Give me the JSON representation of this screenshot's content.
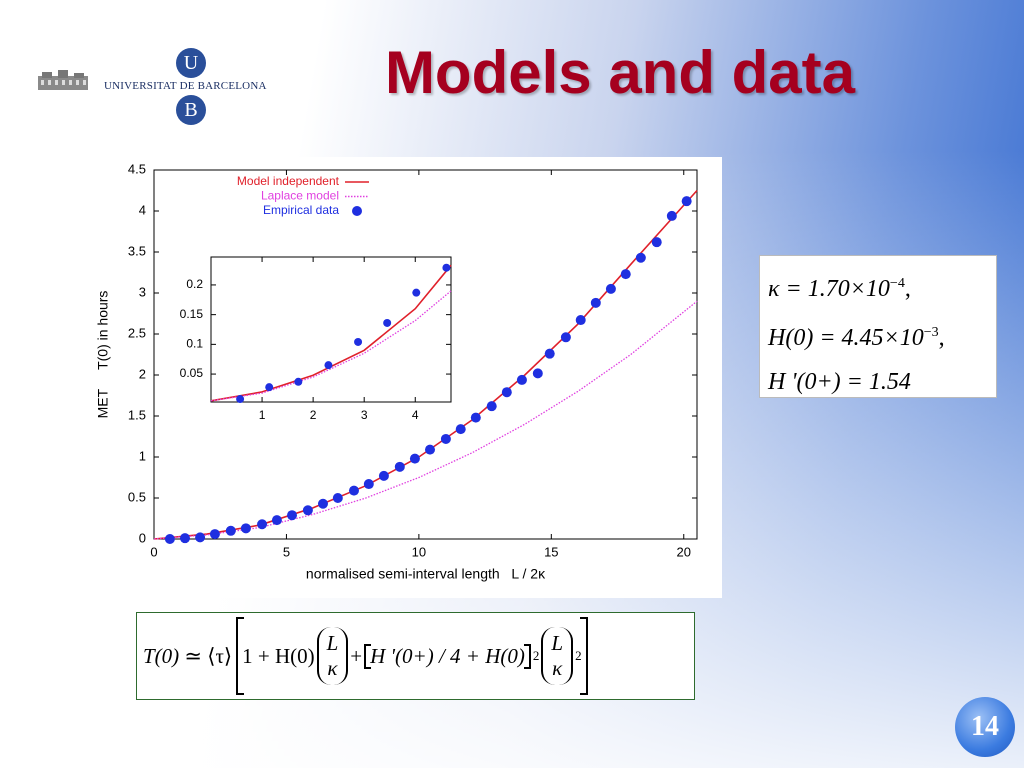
{
  "title": "Models and data",
  "logo": {
    "top_letter": "U",
    "name": "UNIVERSITAT DE BARCELONA",
    "bottom_letter": "B"
  },
  "page_number": "14",
  "parameters": [
    {
      "base": "κ = 1.70×10",
      "exp": "−4",
      "tail": ","
    },
    {
      "base": "H(0) = 4.45×10",
      "exp": "−3",
      "tail": ","
    },
    {
      "base": "H '(0+) = 1.54"
    }
  ],
  "equation": {
    "lhs": "T(0)",
    "approx": "≃",
    "tau": "⟨τ⟩",
    "one": "1 + H(0)",
    "frac1": {
      "num": "L",
      "den": "κ"
    },
    "plus": "+",
    "inner": "H '(0+) / 4 + H(0)",
    "sq1": "2",
    "frac2": {
      "num": "L",
      "den": "κ"
    },
    "sq2": "2"
  },
  "chart_data": [
    {
      "type": "line",
      "x_label": "normalised semi-interval length   L / 2κ",
      "y_label": "MET     T(0) in hours",
      "xlim": [
        0,
        20.5
      ],
      "ylim": [
        0,
        4.5
      ],
      "xticks": [
        0,
        5,
        10,
        15,
        20
      ],
      "yticks": [
        0,
        0.5,
        1,
        1.5,
        2,
        2.5,
        3,
        3.5,
        4,
        4.5
      ],
      "legend": "top-left",
      "series": [
        {
          "name": "Model independent",
          "color": "#e0202a",
          "style": "solid",
          "x": [
            0,
            2,
            4,
            6,
            8,
            10,
            12,
            14,
            16,
            18,
            20.5
          ],
          "values": [
            0,
            0.06,
            0.17,
            0.38,
            0.65,
            1.0,
            1.45,
            2.0,
            2.62,
            3.35,
            4.25
          ]
        },
        {
          "name": "Laplace model",
          "color": "#e040e0",
          "style": "dotted",
          "x": [
            0,
            2,
            4,
            6,
            8,
            10,
            12,
            14,
            16,
            18,
            20.5
          ],
          "values": [
            0,
            0.05,
            0.14,
            0.3,
            0.5,
            0.75,
            1.05,
            1.4,
            1.8,
            2.25,
            2.9
          ]
        },
        {
          "name": "Empirical data",
          "color": "#1f2fe0",
          "style": "markers",
          "x": [
            0.6,
            1.17,
            1.74,
            2.3,
            2.9,
            3.47,
            4.08,
            4.64,
            5.21,
            5.81,
            6.38,
            6.94,
            7.55,
            8.11,
            8.68,
            9.28,
            9.85,
            10.42,
            11.02,
            11.58,
            12.15,
            12.75,
            13.32,
            13.89,
            14.49,
            14.94,
            15.55,
            16.11,
            16.68,
            17.25,
            17.81,
            18.38,
            18.98,
            19.55,
            20.11
          ],
          "values": [
            0,
            0.01,
            0.02,
            0.06,
            0.1,
            0.13,
            0.18,
            0.23,
            0.29,
            0.35,
            0.43,
            0.5,
            0.59,
            0.67,
            0.77,
            0.88,
            0.98,
            1.09,
            1.22,
            1.34,
            1.48,
            1.62,
            1.79,
            1.94,
            2.02,
            2.26,
            2.46,
            2.67,
            2.88,
            3.05,
            3.23,
            3.43,
            3.62,
            3.94,
            4.12
          ]
        }
      ]
    },
    {
      "type": "line",
      "xlim": [
        0,
        4.7
      ],
      "ylim": [
        0.003,
        0.247
      ],
      "xticks": [
        1,
        2,
        3,
        4
      ],
      "yticks": [
        0.05,
        0.1,
        0.15,
        0.2
      ],
      "series": [
        {
          "color": "#e0202a",
          "style": "solid",
          "x": [
            0,
            1,
            2,
            3,
            4,
            4.7
          ],
          "values": [
            0.005,
            0.02,
            0.048,
            0.09,
            0.16,
            0.233
          ]
        },
        {
          "color": "#e040e0",
          "style": "dotted",
          "x": [
            0,
            1,
            2,
            3,
            4,
            4.7
          ],
          "values": [
            0.005,
            0.018,
            0.045,
            0.085,
            0.14,
            0.19
          ]
        },
        {
          "color": "#1f2fe0",
          "style": "markers",
          "x": [
            0.57,
            1.14,
            1.71,
            2.3,
            2.88,
            3.45,
            4.02,
            4.61
          ],
          "values": [
            0.008,
            0.028,
            0.037,
            0.065,
            0.104,
            0.136,
            0.187,
            0.229
          ]
        }
      ]
    }
  ]
}
